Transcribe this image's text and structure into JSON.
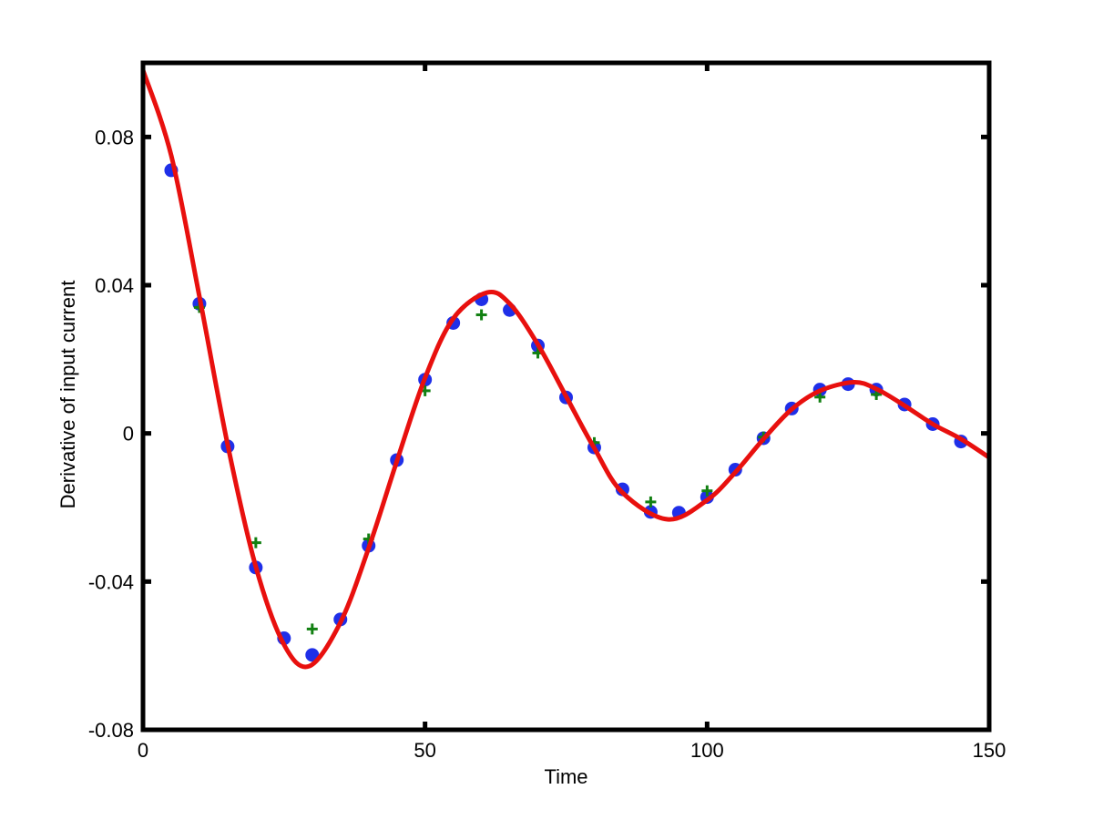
{
  "chart_data": {
    "type": "scatter",
    "title": "",
    "xlabel": "Time",
    "ylabel": "Derivative of input current",
    "xlim": [
      0,
      150
    ],
    "ylim": [
      -0.08,
      0.1
    ],
    "xticks": [
      0,
      50,
      100,
      150
    ],
    "xtick_labels": [
      "0",
      "50",
      "100",
      "150"
    ],
    "yticks": [
      -0.08,
      -0.04,
      0,
      0.04,
      0.08
    ],
    "ytick_labels": [
      "-0.08",
      "-0.04",
      "0",
      "0.04",
      "0.08"
    ],
    "grid": false,
    "legend": "none",
    "series": [
      {
        "marker": "circle",
        "color": "#1f2fe8",
        "x": [
          5,
          10,
          15,
          20,
          25,
          30,
          35,
          40,
          45,
          50,
          55,
          60,
          65,
          70,
          75,
          80,
          85,
          90,
          95,
          100,
          105,
          110,
          115,
          120,
          125,
          130,
          135,
          140,
          145
        ],
        "y": [
          0.071,
          0.035,
          -0.0035,
          -0.0362,
          -0.0553,
          -0.0598,
          -0.0502,
          -0.0303,
          -0.0072,
          0.0145,
          0.0298,
          0.0362,
          0.0333,
          0.0237,
          0.0097,
          -0.0038,
          -0.0151,
          -0.0212,
          -0.0214,
          -0.0172,
          -0.0098,
          -0.0013,
          0.0067,
          0.0118,
          0.0133,
          0.0118,
          0.0078,
          0.0025,
          -0.0022
        ]
      },
      {
        "marker": "plus",
        "color": "#128012",
        "x": [
          10,
          20,
          30,
          40,
          50,
          60,
          70,
          80,
          90,
          100,
          110,
          120,
          130
        ],
        "y": [
          0.034,
          -0.0295,
          -0.0528,
          -0.0285,
          0.0115,
          0.032,
          0.0217,
          -0.0025,
          -0.0185,
          -0.0155,
          -0.001,
          0.0098,
          0.0105
        ]
      },
      {
        "marker": "line",
        "color": "#e8100e",
        "x": [
          0,
          5,
          10,
          15,
          20,
          25,
          29.5,
          35,
          40,
          45,
          50,
          55,
          61,
          65,
          70,
          75,
          80,
          85,
          93,
          100,
          105,
          110,
          115,
          120,
          126,
          130,
          135,
          140,
          145,
          150
        ],
        "y": [
          0.098,
          0.075,
          0.037,
          -0.003,
          -0.036,
          -0.057,
          -0.0628,
          -0.051,
          -0.031,
          -0.0075,
          0.015,
          0.031,
          0.038,
          0.035,
          0.024,
          0.01,
          -0.004,
          -0.016,
          -0.0232,
          -0.018,
          -0.0105,
          -0.0015,
          0.0065,
          0.0115,
          0.0138,
          0.012,
          0.0075,
          0.0025,
          -0.0015,
          -0.0065
        ]
      }
    ]
  }
}
